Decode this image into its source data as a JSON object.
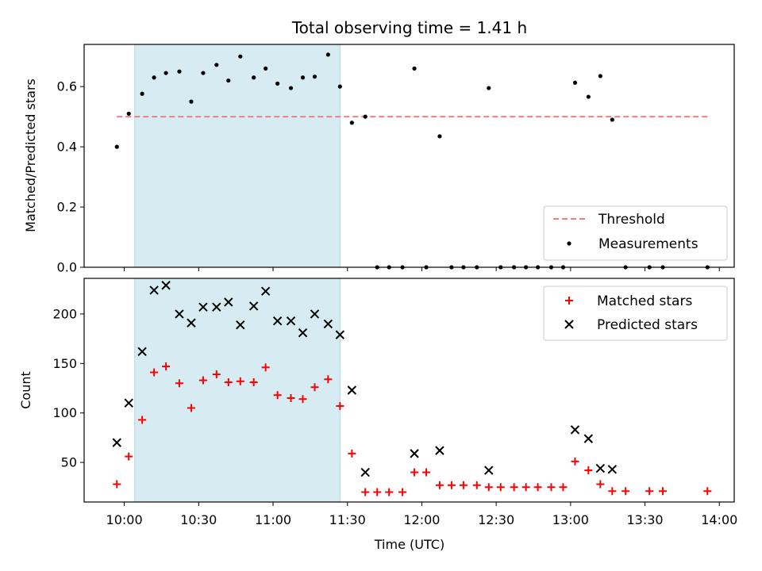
{
  "chart_data": [
    {
      "type": "scatter",
      "title": "Total observing time = 1.41 h",
      "ylabel": "Matched/Predicted stars",
      "ylim": [
        0,
        0.74
      ],
      "yticks": [
        0.0,
        0.2,
        0.4,
        0.6
      ],
      "ytick_labels": [
        "0.0",
        "0.2",
        "0.4",
        "0.6"
      ],
      "highlight_span": {
        "x0": 10.07,
        "x1": 11.45,
        "color": "#add8e6"
      },
      "threshold": {
        "name": "Threshold",
        "value": 0.5,
        "x0": 9.95,
        "x1": 13.92,
        "color": "#f08080"
      },
      "legend": {
        "placement": "lower right",
        "entries": [
          "Threshold",
          "Measurements"
        ]
      },
      "series": [
        {
          "name": "Measurements",
          "color": "#000000",
          "points": [
            [
              9.95,
              0.4
            ],
            [
              10.03,
              0.51
            ],
            [
              10.12,
              0.576
            ],
            [
              10.2,
              0.63
            ],
            [
              10.28,
              0.645
            ],
            [
              10.37,
              0.65
            ],
            [
              10.45,
              0.55
            ],
            [
              10.53,
              0.645
            ],
            [
              10.62,
              0.672
            ],
            [
              10.7,
              0.62
            ],
            [
              10.78,
              0.7
            ],
            [
              10.87,
              0.63
            ],
            [
              10.95,
              0.66
            ],
            [
              11.03,
              0.61
            ],
            [
              11.12,
              0.595
            ],
            [
              11.2,
              0.63
            ],
            [
              11.28,
              0.633
            ],
            [
              11.37,
              0.706
            ],
            [
              11.45,
              0.6
            ],
            [
              11.53,
              0.48
            ],
            [
              11.62,
              0.5
            ],
            [
              11.7,
              0.0
            ],
            [
              11.78,
              0.0
            ],
            [
              11.87,
              0.0
            ],
            [
              11.95,
              0.66
            ],
            [
              12.03,
              0.0
            ],
            [
              12.12,
              0.435
            ],
            [
              12.2,
              0.0
            ],
            [
              12.28,
              0.0
            ],
            [
              12.37,
              0.0
            ],
            [
              12.45,
              0.595
            ],
            [
              12.53,
              0.0
            ],
            [
              12.62,
              0.0
            ],
            [
              12.7,
              0.0
            ],
            [
              12.78,
              0.0
            ],
            [
              12.87,
              0.0
            ],
            [
              12.95,
              0.0
            ],
            [
              13.03,
              0.613
            ],
            [
              13.12,
              0.566
            ],
            [
              13.2,
              0.635
            ],
            [
              13.28,
              0.49
            ],
            [
              13.37,
              0.0
            ],
            [
              13.53,
              0.0
            ],
            [
              13.62,
              0.0
            ],
            [
              13.92,
              0.0
            ]
          ]
        }
      ]
    },
    {
      "type": "scatter",
      "xlabel": "Time (UTC)",
      "ylabel": "Count",
      "xlim": [
        9.73,
        14.1
      ],
      "ylim": [
        10,
        236
      ],
      "xticks": [
        10.0,
        10.5,
        11.0,
        11.5,
        12.0,
        12.5,
        13.0,
        13.5,
        14.0
      ],
      "xtick_labels": [
        "10:00",
        "10:30",
        "11:00",
        "11:30",
        "12:00",
        "12:30",
        "13:00",
        "13:30",
        "14:00"
      ],
      "yticks": [
        50,
        100,
        150,
        200
      ],
      "ytick_labels": [
        "50",
        "100",
        "150",
        "200"
      ],
      "highlight_span": {
        "x0": 10.07,
        "x1": 11.45,
        "color": "#add8e6"
      },
      "legend": {
        "placement": "upper right",
        "entries": [
          "Matched stars",
          "Predicted stars"
        ]
      },
      "series": [
        {
          "name": "Matched stars",
          "marker": "plus",
          "color": "#ff0000",
          "points": [
            [
              9.95,
              28
            ],
            [
              10.03,
              56
            ],
            [
              10.12,
              93
            ],
            [
              10.2,
              141
            ],
            [
              10.28,
              147
            ],
            [
              10.37,
              130
            ],
            [
              10.45,
              105
            ],
            [
              10.53,
              133
            ],
            [
              10.62,
              139
            ],
            [
              10.7,
              131
            ],
            [
              10.78,
              132
            ],
            [
              10.87,
              131
            ],
            [
              10.95,
              146
            ],
            [
              11.03,
              118
            ],
            [
              11.12,
              115
            ],
            [
              11.2,
              114
            ],
            [
              11.28,
              126
            ],
            [
              11.37,
              134
            ],
            [
              11.45,
              107
            ],
            [
              11.53,
              59
            ],
            [
              11.62,
              20
            ],
            [
              11.7,
              20
            ],
            [
              11.78,
              20
            ],
            [
              11.87,
              20
            ],
            [
              11.95,
              40
            ],
            [
              12.03,
              40
            ],
            [
              12.12,
              27
            ],
            [
              12.2,
              27
            ],
            [
              12.28,
              27
            ],
            [
              12.37,
              27
            ],
            [
              12.45,
              25
            ],
            [
              12.53,
              25
            ],
            [
              12.62,
              25
            ],
            [
              12.7,
              25
            ],
            [
              12.78,
              25
            ],
            [
              12.87,
              25
            ],
            [
              12.95,
              25
            ],
            [
              13.03,
              51
            ],
            [
              13.12,
              42
            ],
            [
              13.2,
              28
            ],
            [
              13.28,
              21
            ],
            [
              13.37,
              21
            ],
            [
              13.53,
              21
            ],
            [
              13.62,
              21
            ],
            [
              13.92,
              21
            ]
          ]
        },
        {
          "name": "Predicted stars",
          "marker": "x",
          "color": "#000000",
          "points": [
            [
              9.95,
              70
            ],
            [
              10.03,
              110
            ],
            [
              10.12,
              162
            ],
            [
              10.2,
              224
            ],
            [
              10.28,
              229
            ],
            [
              10.37,
              200
            ],
            [
              10.45,
              191
            ],
            [
              10.53,
              207
            ],
            [
              10.62,
              207
            ],
            [
              10.7,
              212
            ],
            [
              10.78,
              189
            ],
            [
              10.87,
              208
            ],
            [
              10.95,
              223
            ],
            [
              11.03,
              193
            ],
            [
              11.12,
              193
            ],
            [
              11.2,
              181
            ],
            [
              11.28,
              200
            ],
            [
              11.37,
              190
            ],
            [
              11.45,
              179
            ],
            [
              11.53,
              123
            ],
            [
              11.62,
              40
            ],
            [
              11.95,
              59
            ],
            [
              12.12,
              62
            ],
            [
              12.45,
              42
            ],
            [
              13.03,
              83
            ],
            [
              13.12,
              74
            ],
            [
              13.2,
              44
            ],
            [
              13.28,
              43
            ]
          ]
        }
      ]
    }
  ]
}
